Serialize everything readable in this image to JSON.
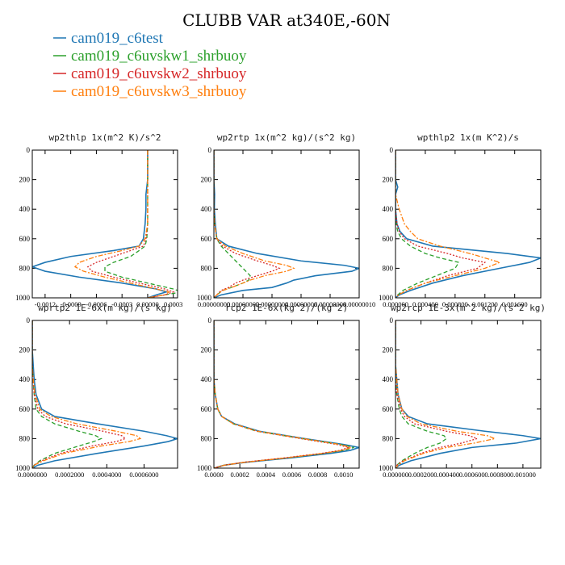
{
  "figure": {
    "title": "CLUBB VAR at340E,-60N"
  },
  "legend": [
    {
      "name": "cam019_c6test",
      "color": "#1f77b4"
    },
    {
      "name": "cam019_c6uvskw1_shrbuoy",
      "color": "#2ca02c"
    },
    {
      "name": "cam019_c6uvskw2_shrbuoy",
      "color": "#d62728"
    },
    {
      "name": "cam019_c6uvskw3_shrbuoy",
      "color": "#ff7f0e"
    }
  ],
  "chart_data": [
    {
      "type": "line",
      "title": "wp2thlp  1x(m^2 K)/s^2",
      "xlim": [
        -0.00135,
        0.00035
      ],
      "ylim": [
        1000,
        0
      ],
      "xticks": [
        -0.0012,
        -0.0009,
        -0.0006,
        -0.0003,
        0.0,
        0.0003
      ],
      "xtick_labels": [
        "-0.0012",
        "-0.0009",
        "-0.0006",
        "-0.0003",
        "0.00000",
        "0.0003"
      ],
      "yticks": [
        0,
        200,
        400,
        600,
        800,
        1000
      ],
      "y": [
        0,
        100,
        200,
        300,
        400,
        500,
        600,
        650,
        680,
        720,
        760,
        790,
        820,
        860,
        900,
        940,
        960,
        980,
        1000
      ],
      "series": [
        {
          "name": "cam019_c6test",
          "values": [
            0.0,
            0.0,
            0.0,
            -2e-05,
            -2e-05,
            -3e-05,
            -5e-05,
            -0.0001,
            -0.0004,
            -0.0009,
            -0.0012,
            -0.00135,
            -0.0012,
            -0.0008,
            -0.0003,
            0.0001,
            0.00022,
            0.0001,
            0.0
          ]
        },
        {
          "name": "cam019_c6uvskw1_shrbuoy",
          "values": [
            0.0,
            0.0,
            0.0,
            0.0,
            0.0,
            0.0,
            -1e-05,
            -3e-05,
            -0.0001,
            -0.0002,
            -0.0004,
            -0.0005,
            -0.0005,
            -0.0003,
            0.0,
            0.0003,
            0.0004,
            0.0002,
            0.0
          ]
        },
        {
          "name": "cam019_c6uvskw2_shrbuoy",
          "values": [
            0.0,
            0.0,
            0.0,
            0.0,
            0.0,
            0.0,
            -2e-05,
            -5e-05,
            -0.0002,
            -0.0004,
            -0.0006,
            -0.0007,
            -0.00065,
            -0.0004,
            -0.0001,
            0.0002,
            0.0003,
            0.0002,
            0.0
          ]
        },
        {
          "name": "cam019_c6uvskw3_shrbuoy",
          "values": [
            0.0,
            0.0,
            0.0,
            0.0,
            0.0,
            0.0,
            -3e-05,
            -0.0001,
            -0.0003,
            -0.0006,
            -0.0008,
            -0.00085,
            -0.00075,
            -0.0005,
            -0.0002,
            0.0001,
            0.00025,
            0.0002,
            0.0
          ]
        }
      ]
    },
    {
      "type": "line",
      "title": "wp2rtp  1x(m^2 kg)/(s^2 kg)",
      "xlim": [
        0.0,
        1e-07
      ],
      "ylim": [
        1000,
        0
      ],
      "xticks": [
        0.0,
        2e-08,
        4e-08,
        6e-08,
        8e-08,
        1e-07
      ],
      "xtick_labels": [
        "0.00000000",
        "0.00000002",
        "0.00000004",
        "0.00000006",
        "0.00000008",
        "0.00000010"
      ],
      "yticks": [
        0,
        200,
        400,
        600,
        800,
        1000
      ],
      "y": [
        0,
        200,
        300,
        400,
        500,
        600,
        650,
        700,
        750,
        780,
        800,
        820,
        850,
        880,
        900,
        930,
        950,
        980,
        1000
      ],
      "series": [
        {
          "name": "cam019_c6test",
          "values": [
            0.0,
            0.0,
            5e-10,
            3e-10,
            1e-09,
            2e-09,
            1e-08,
            3e-08,
            6e-08,
            9e-08,
            1e-07,
            9.5e-08,
            7e-08,
            5.5e-08,
            5e-08,
            4e-08,
            2e-08,
            5e-09,
            0.0
          ]
        },
        {
          "name": "cam019_c6uvskw1_shrbuoy",
          "values": [
            0.0,
            0.0,
            0.0,
            0.0,
            5e-10,
            2e-09,
            5e-09,
            1e-08,
            1.5e-08,
            1.8e-08,
            2e-08,
            2.2e-08,
            2.5e-08,
            2.4e-08,
            2e-08,
            1.2e-08,
            6e-09,
            2e-09,
            0.0
          ]
        },
        {
          "name": "cam019_c6uvskw2_shrbuoy",
          "values": [
            0.0,
            0.0,
            0.0,
            0.0,
            5e-10,
            2e-09,
            6e-09,
            1.5e-08,
            3e-08,
            4e-08,
            4.5e-08,
            4e-08,
            3e-08,
            2e-08,
            1.5e-08,
            1e-08,
            5e-09,
            2e-09,
            0.0
          ]
        },
        {
          "name": "cam019_c6uvskw3_shrbuoy",
          "values": [
            0.0,
            0.0,
            0.0,
            0.0,
            5e-10,
            2e-09,
            8e-09,
            2e-08,
            3.5e-08,
            5e-08,
            5.5e-08,
            5e-08,
            3.5e-08,
            2.5e-08,
            2e-08,
            1.2e-08,
            6e-09,
            2e-09,
            0.0
          ]
        }
      ]
    },
    {
      "type": "line",
      "title": "wpthlp2  1x(m K^2)/s",
      "xlim": [
        0.0,
        0.00195
      ],
      "ylim": [
        1000,
        0
      ],
      "xticks": [
        0.0,
        0.0004,
        0.0008,
        0.0012,
        0.0016
      ],
      "xtick_labels": [
        "0.000000",
        "0.000400",
        "0.000800",
        "0.001200",
        "0.001600"
      ],
      "yticks": [
        0,
        200,
        400,
        600,
        800,
        1000
      ],
      "y": [
        0,
        200,
        250,
        300,
        400,
        500,
        550,
        600,
        650,
        700,
        730,
        760,
        800,
        850,
        900,
        950,
        980,
        1000
      ],
      "series": [
        {
          "name": "cam019_c6test",
          "values": [
            0.0,
            0.0,
            3e-05,
            0.0,
            0.0,
            2e-05,
            6e-05,
            0.00015,
            0.0005,
            0.0015,
            0.00195,
            0.0018,
            0.0014,
            0.0009,
            0.0005,
            0.0002,
            5e-05,
            0.0
          ]
        },
        {
          "name": "cam019_c6uvskw1_shrbuoy",
          "values": [
            0.0,
            0.0,
            0.0,
            0.0,
            0.0,
            1e-05,
            3e-05,
            8e-05,
            0.0002,
            0.0004,
            0.0006,
            0.00085,
            0.0008,
            0.00055,
            0.0003,
            0.0001,
            3e-05,
            0.0
          ]
        },
        {
          "name": "cam019_c6uvskw2_shrbuoy",
          "values": [
            0.0,
            0.0,
            0.0,
            0.0,
            0.0,
            2e-05,
            5e-05,
            0.00012,
            0.0003,
            0.0007,
            0.0009,
            0.0012,
            0.0011,
            0.0007,
            0.0004,
            0.00015,
            4e-05,
            0.0
          ]
        },
        {
          "name": "cam019_c6uvskw3_shrbuoy",
          "values": [
            0.0,
            0.0,
            0.0,
            0.0,
            5e-05,
            0.00012,
            0.0002,
            0.0003,
            0.0006,
            0.001,
            0.0012,
            0.0014,
            0.0012,
            0.0008,
            0.0004,
            0.00015,
            4e-05,
            0.0
          ]
        }
      ]
    },
    {
      "type": "line",
      "title": "wprtp2  1E-6x(m kg)/(s kg)",
      "xlim": [
        0.0,
        0.00078
      ],
      "ylim": [
        1000,
        0
      ],
      "xticks": [
        0.0,
        0.0002,
        0.0004,
        0.0006
      ],
      "xtick_labels": [
        "0.0000000",
        "0.0002000",
        "0.0004000",
        "0.0006000"
      ],
      "yticks": [
        0,
        200,
        400,
        600,
        800,
        1000
      ],
      "y": [
        0,
        200,
        300,
        400,
        500,
        600,
        650,
        700,
        750,
        780,
        800,
        820,
        850,
        900,
        950,
        980,
        1000
      ],
      "series": [
        {
          "name": "cam019_c6test",
          "values": [
            0.0,
            0.0,
            5e-06,
            1e-05,
            2e-05,
            5e-05,
            0.00012,
            0.00035,
            0.0006,
            0.00072,
            0.00078,
            0.00073,
            0.0006,
            0.00035,
            0.00012,
            3e-05,
            0.0
          ]
        },
        {
          "name": "cam019_c6uvskw1_shrbuoy",
          "values": [
            0.0,
            0.0,
            0.0,
            5e-06,
            1e-05,
            2e-05,
            5e-05,
            0.00012,
            0.00025,
            0.00034,
            0.00037,
            0.00033,
            0.00025,
            0.00012,
            4e-05,
            1e-05,
            0.0
          ]
        },
        {
          "name": "cam019_c6uvskw2_shrbuoy",
          "values": [
            0.0,
            0.0,
            0.0,
            5e-06,
            1e-05,
            3e-05,
            7e-05,
            0.00018,
            0.00038,
            0.00048,
            0.0005,
            0.00045,
            0.00032,
            0.00015,
            5e-05,
            1e-05,
            0.0
          ]
        },
        {
          "name": "cam019_c6uvskw3_shrbuoy",
          "values": [
            0.0,
            0.0,
            0.0,
            5e-06,
            1.5e-05,
            4e-05,
            0.0001,
            0.00024,
            0.00045,
            0.00056,
            0.00058,
            0.00052,
            0.00037,
            0.00017,
            6e-05,
            1e-05,
            0.0
          ]
        }
      ]
    },
    {
      "type": "line",
      "title": "rcp2  1E-6x(kg^2)/(kg^2)",
      "xlim": [
        0.0,
        0.00112
      ],
      "ylim": [
        1000,
        0
      ],
      "xticks": [
        0.0,
        0.0002,
        0.0004,
        0.0006,
        0.0008,
        0.001
      ],
      "xtick_labels": [
        "0.0000",
        "0.0002",
        "0.0004",
        "0.0006",
        "0.0008",
        "0.0010"
      ],
      "yticks": [
        0,
        200,
        400,
        600,
        800,
        1000
      ],
      "y": [
        0,
        400,
        500,
        600,
        650,
        700,
        750,
        800,
        840,
        860,
        880,
        900,
        930,
        960,
        980,
        1000
      ],
      "series": [
        {
          "name": "cam019_c6test",
          "values": [
            0.0,
            0.0,
            1e-05,
            3e-05,
            6e-05,
            0.00016,
            0.00035,
            0.0007,
            0.001,
            0.00112,
            0.00105,
            0.0009,
            0.0006,
            0.00025,
            8e-05,
            0.0
          ]
        },
        {
          "name": "cam019_c6uvskw1_shrbuoy",
          "values": [
            0.0,
            0.0,
            1e-05,
            3e-05,
            6e-05,
            0.00015,
            0.00033,
            0.00068,
            0.00098,
            0.00108,
            0.001,
            0.00085,
            0.00057,
            0.00024,
            8e-05,
            0.0
          ]
        },
        {
          "name": "cam019_c6uvskw2_shrbuoy",
          "values": [
            0.0,
            0.0,
            1e-05,
            3e-05,
            6e-05,
            0.00015,
            0.00033,
            0.00067,
            0.00095,
            0.00104,
            0.00097,
            0.00083,
            0.00055,
            0.00023,
            8e-05,
            0.0
          ]
        },
        {
          "name": "cam019_c6uvskw3_shrbuoy",
          "values": [
            0.0,
            0.0,
            1e-05,
            3e-05,
            6e-05,
            0.00015,
            0.00034,
            0.00069,
            0.00097,
            0.00106,
            0.00099,
            0.00084,
            0.00056,
            0.00024,
            8e-05,
            0.0
          ]
        }
      ]
    },
    {
      "type": "line",
      "title": "wp2rcp  1E-3x(m^2 kg)/(s^2 kg)",
      "xlim": [
        0.0,
        0.00114
      ],
      "ylim": [
        1000,
        0
      ],
      "xticks": [
        0.0,
        0.0002,
        0.0004,
        0.0006,
        0.0008,
        0.001
      ],
      "xtick_labels": [
        "0.000000",
        "0.000200",
        "0.000400",
        "0.000600",
        "0.000800",
        "0.001000"
      ],
      "yticks": [
        0,
        200,
        400,
        600,
        800,
        1000
      ],
      "y": [
        0,
        300,
        400,
        500,
        600,
        650,
        700,
        750,
        780,
        800,
        830,
        860,
        900,
        950,
        980,
        1000
      ],
      "series": [
        {
          "name": "cam019_c6test",
          "values": [
            0.0,
            0.0,
            1e-05,
            2e-05,
            5e-05,
            0.0001,
            0.00025,
            0.0007,
            0.001,
            0.00114,
            0.00095,
            0.0006,
            0.00035,
            0.00012,
            3e-05,
            0.0
          ]
        },
        {
          "name": "cam019_c6uvskw1_shrbuoy",
          "values": [
            0.0,
            0.0,
            0.0,
            1e-05,
            3e-05,
            5e-05,
            0.0001,
            0.00025,
            0.00038,
            0.0004,
            0.00035,
            0.00025,
            0.00015,
            5e-05,
            1e-05,
            0.0
          ]
        },
        {
          "name": "cam019_c6uvskw2_shrbuoy",
          "values": [
            0.0,
            0.0,
            0.0,
            1e-05,
            4e-05,
            7e-05,
            0.00015,
            0.0004,
            0.00058,
            0.00064,
            0.00052,
            0.00035,
            0.0002,
            6e-05,
            1e-05,
            0.0
          ]
        },
        {
          "name": "cam019_c6uvskw3_shrbuoy",
          "values": [
            0.0,
            0.0,
            1e-05,
            2e-05,
            5e-05,
            9e-05,
            0.0002,
            0.00048,
            0.00072,
            0.00078,
            0.00062,
            0.0004,
            0.00022,
            7e-05,
            2e-05,
            0.0
          ]
        }
      ]
    }
  ]
}
